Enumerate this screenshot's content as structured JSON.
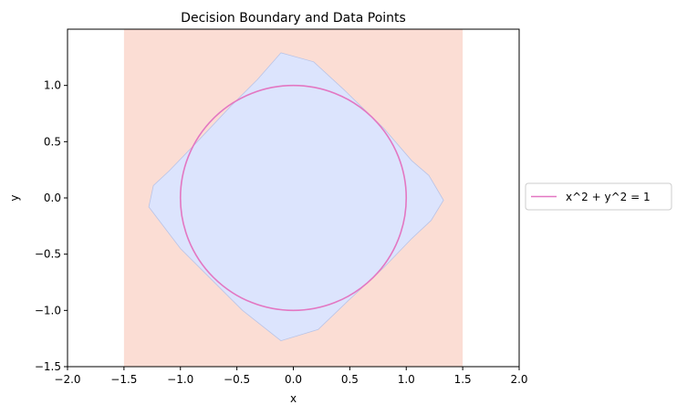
{
  "chart_data": {
    "type": "line",
    "title": "Decision Boundary and Data Points",
    "xlabel": "x",
    "ylabel": "y",
    "xlim": [
      -2.0,
      2.0
    ],
    "ylim": [
      -1.5,
      1.5
    ],
    "x_ticks": [
      -2.0,
      -1.5,
      -1.0,
      -0.5,
      0.0,
      0.5,
      1.0,
      1.5,
      2.0
    ],
    "y_ticks": [
      -1.5,
      -1.0,
      -0.5,
      0.0,
      0.5,
      1.0
    ],
    "x_tick_labels": [
      "−2.0",
      "−1.5",
      "−1.0",
      "−0.5",
      "0.0",
      "0.5",
      "1.0",
      "1.5",
      "2.0"
    ],
    "y_tick_labels": [
      "−1.5",
      "−1.0",
      "−0.5",
      "0.0",
      "0.5",
      "1.0"
    ],
    "grid": false,
    "legend_position": "outside-right",
    "background_region": {
      "x_range": [
        -1.5,
        1.5
      ],
      "y_range": [
        -1.5,
        1.5
      ],
      "color": "#fbddd4"
    },
    "decision_region": {
      "color": "#dce4fd",
      "edge_color": "#b9c3e6",
      "polygon": [
        [
          -0.11,
          1.29
        ],
        [
          0.18,
          1.21
        ],
        [
          0.45,
          0.96
        ],
        [
          0.8,
          0.62
        ],
        [
          1.05,
          0.33
        ],
        [
          1.2,
          0.2
        ],
        [
          1.33,
          -0.02
        ],
        [
          1.22,
          -0.2
        ],
        [
          1.05,
          -0.36
        ],
        [
          0.8,
          -0.62
        ],
        [
          0.5,
          -0.9
        ],
        [
          0.22,
          -1.17
        ],
        [
          -0.11,
          -1.27
        ],
        [
          -0.45,
          -1.0
        ],
        [
          -0.75,
          -0.7
        ],
        [
          -1.0,
          -0.45
        ],
        [
          -1.28,
          -0.08
        ],
        [
          -1.24,
          0.11
        ],
        [
          -1.1,
          0.24
        ],
        [
          -0.85,
          0.5
        ],
        [
          -0.55,
          0.82
        ],
        [
          -0.32,
          1.05
        ]
      ]
    },
    "series": [
      {
        "name": "x^2 + y^2 = 1",
        "shape": "circle",
        "center": [
          0,
          0
        ],
        "radius": 1,
        "color": "#e377c2"
      }
    ]
  }
}
